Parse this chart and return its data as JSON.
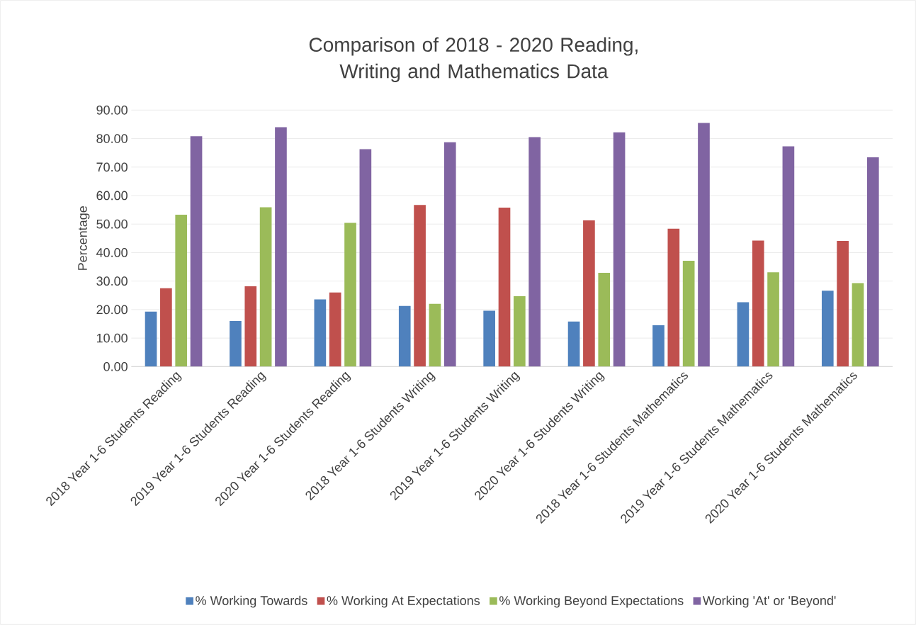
{
  "chart_data": {
    "type": "bar",
    "title": "Comparison of 2018 - 2020 Reading, Writing and Mathematics Data",
    "ylabel": "Percentage",
    "categories": [
      "2018 Year 1-6 Students Reading",
      "2019 Year 1-6 Students Reading",
      "2020 Year 1-6 Students Reading",
      "2018 Year 1-6 Students Writing",
      "2019 Year 1-6 Students Writing",
      "2020 Year 1-6 Students Writing",
      "2018 Year 1-6 Students Mathematics",
      "2019 Year 1-6 Students Mathematics",
      "2020 Year 1-6 Students Mathematics"
    ],
    "series": [
      {
        "name": "% Working Towards",
        "color": "#4f81bd",
        "values": [
          19.3,
          16.0,
          23.6,
          21.3,
          19.6,
          15.8,
          14.5,
          22.6,
          26.6
        ]
      },
      {
        "name": "% Working At Expectations",
        "color": "#c0504d",
        "values": [
          27.5,
          28.2,
          26.0,
          56.7,
          55.8,
          51.3,
          48.4,
          44.2,
          44.1
        ]
      },
      {
        "name": "% Working Beyond Expectations",
        "color": "#9bbb59",
        "values": [
          53.3,
          55.9,
          50.4,
          22.0,
          24.7,
          32.9,
          37.1,
          33.1,
          29.3
        ]
      },
      {
        "name": "Working 'At' or 'Beyond'",
        "color": "#8064a2",
        "values": [
          80.8,
          84.0,
          76.3,
          78.7,
          80.5,
          82.2,
          85.5,
          77.3,
          73.4
        ]
      }
    ],
    "ylim": [
      0,
      90
    ],
    "yticks": [
      {
        "value": 0,
        "label": "0.00"
      },
      {
        "value": 10,
        "label": "10.00"
      },
      {
        "value": 20,
        "label": "20.00"
      },
      {
        "value": 30,
        "label": "30.00"
      },
      {
        "value": 40,
        "label": "40.00"
      },
      {
        "value": 50,
        "label": "50.00"
      },
      {
        "value": 60,
        "label": "60.00"
      },
      {
        "value": 70,
        "label": "70.00"
      },
      {
        "value": 80,
        "label": "80.00"
      },
      {
        "value": 90,
        "label": "90.00"
      }
    ],
    "grid": "y",
    "legend": "bottom"
  }
}
